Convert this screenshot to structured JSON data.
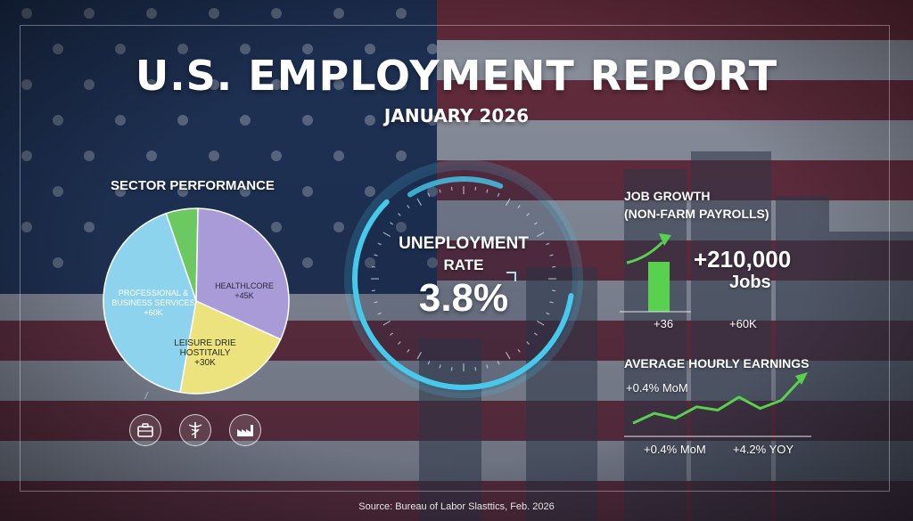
{
  "header": {
    "title": "U.S. EMPLOYMENT REPORT",
    "subtitle": "JANUARY 2026"
  },
  "sector": {
    "title": "SECTOR PERFORMANCE",
    "icons": [
      "briefcase-icon",
      "caduceus-icon",
      "factory-icon"
    ]
  },
  "unemployment": {
    "label_line1": "UNEPLOYMENT",
    "label_line2": "RATE",
    "value": "3.8%"
  },
  "job_growth": {
    "title_line1": "JOB GROWTH",
    "title_line2": "(NON-FARM PAYROLLS)",
    "value": "+210,000",
    "unit": "Jobs",
    "left_label": "+36",
    "right_label": "+60K"
  },
  "earnings": {
    "title": "AVERAGE HOURLY EARNINGS",
    "top_note": "+0.4% MoM",
    "left_label": "+0.4% MoM",
    "right_label": "+4.2% YOY"
  },
  "footer": {
    "source": "Source: Bureau of Labor Slasttics, Feb. 2026"
  },
  "colors": {
    "pie_healthcare": "#a99ad8",
    "pie_leisure": "#ece37e",
    "pie_professional": "#8ed3ee",
    "pie_other": "#6cc860",
    "gauge_ring": "#47c9ec",
    "accent_green": "#58d24e"
  },
  "chart_data": [
    {
      "type": "pie",
      "title": "SECTOR PERFORMANCE",
      "slices": [
        {
          "label": "HEALTHLCORE",
          "value_label": "+45K",
          "value": 45,
          "color": "#a99ad8"
        },
        {
          "label": "LEISURE DRIE HOSTITAILY",
          "value_label": "+30K",
          "value": 30,
          "color": "#ece37e"
        },
        {
          "label": "PROFESSIONAL & BUSINESS SERVICES",
          "value_label": "+60K",
          "value": 60,
          "color": "#8ed3ee"
        },
        {
          "label": "",
          "value_label": "",
          "value": 8,
          "color": "#6cc860"
        }
      ]
    },
    {
      "type": "bar",
      "title": "JOB GROWTH (NON-FARM PAYROLLS)",
      "categories": [
        "+36"
      ],
      "values": [
        210000
      ]
    },
    {
      "type": "line",
      "title": "AVERAGE HOURLY EARNINGS",
      "values": [
        0.6,
        1.2,
        0.9,
        1.6,
        1.4,
        2.2,
        1.5,
        2.0,
        3.4
      ]
    }
  ]
}
